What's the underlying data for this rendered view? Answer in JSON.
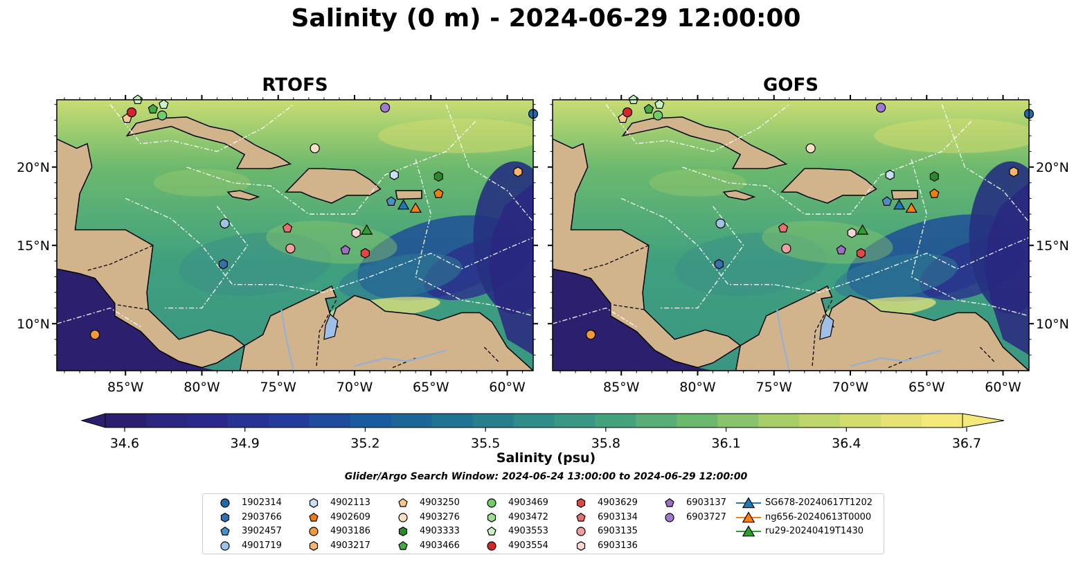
{
  "figure": {
    "title": "Salinity (0 m) - 2024-06-29 12:00:00",
    "panels": [
      {
        "title": "RTOFS"
      },
      {
        "title": "GOFS"
      }
    ],
    "lon_ticks": [
      "85°W",
      "80°W",
      "75°W",
      "70°W",
      "65°W",
      "60°W"
    ],
    "lat_ticks": [
      "20°N",
      "15°N",
      "10°N"
    ],
    "colors": {
      "land": "#d2b48c",
      "lake": "#9fbfe6",
      "deep_low": "#2c1f6e",
      "mid": "#3fa07f",
      "high": "#f4e97a"
    }
  },
  "colorbar": {
    "label": "Salinity (psu)",
    "ticks": [
      "34.6",
      "34.9",
      "35.2",
      "35.5",
      "35.8",
      "36.1",
      "36.4",
      "36.7"
    ],
    "range": [
      34.6,
      36.7
    ],
    "colormap": [
      "#2a1f6e",
      "#292a8c",
      "#233c9c",
      "#1a5a9e",
      "#1e7392",
      "#2f8b8a",
      "#44a27d",
      "#6cb96e",
      "#a6cf69",
      "#d5dc6e",
      "#f4e97a"
    ],
    "search_window": "Glider/Argo Search Window: 2024-06-24 13:00:00 to 2024-06-29 12:00:00"
  },
  "legend": {
    "items": [
      {
        "label": "1902314",
        "marker": "circle",
        "color": "#1f6aa8"
      },
      {
        "label": "2903766",
        "marker": "hexagon",
        "color": "#2f72b0"
      },
      {
        "label": "3902457",
        "marker": "pentagon",
        "color": "#4a90c8"
      },
      {
        "label": "4901719",
        "marker": "circle",
        "color": "#9cc4e6"
      },
      {
        "label": "4902113",
        "marker": "hexagon",
        "color": "#c6e0f5"
      },
      {
        "label": "4902609",
        "marker": "pentagon",
        "color": "#f07d10"
      },
      {
        "label": "4903186",
        "marker": "circle",
        "color": "#f59a3a"
      },
      {
        "label": "4903217",
        "marker": "hexagon",
        "color": "#f8b56c"
      },
      {
        "label": "4903250",
        "marker": "pentagon",
        "color": "#f9c98f"
      },
      {
        "label": "4903276",
        "marker": "circle",
        "color": "#fde0c0"
      },
      {
        "label": "4903333",
        "marker": "hexagon",
        "color": "#2a8a2a"
      },
      {
        "label": "4903466",
        "marker": "pentagon",
        "color": "#45aa40"
      },
      {
        "label": "4903469",
        "marker": "circle",
        "color": "#6fce6a"
      },
      {
        "label": "4903472",
        "marker": "hexagon",
        "color": "#9de092"
      },
      {
        "label": "4903553",
        "marker": "pentagon",
        "color": "#caf2c0"
      },
      {
        "label": "4903554",
        "marker": "circle",
        "color": "#d62728"
      },
      {
        "label": "4903629",
        "marker": "hexagon",
        "color": "#e04848"
      },
      {
        "label": "6903134",
        "marker": "pentagon",
        "color": "#ea7070"
      },
      {
        "label": "6903135",
        "marker": "circle",
        "color": "#f0a0a0"
      },
      {
        "label": "6903136",
        "marker": "hexagon",
        "color": "#fbd4d4"
      },
      {
        "label": "6903137",
        "marker": "pentagon",
        "color": "#9b6fc4"
      },
      {
        "label": "6903727",
        "marker": "circle",
        "color": "#a07ad0"
      },
      {
        "label": "SG678-20240617T1202",
        "marker": "triangle",
        "color": "#1f77b4"
      },
      {
        "label": "ng656-20240613T0000",
        "marker": "triangle",
        "color": "#ff7f0e"
      },
      {
        "label": "ru29-20240419T1430",
        "marker": "triangle",
        "color": "#2ca02c"
      }
    ]
  }
}
